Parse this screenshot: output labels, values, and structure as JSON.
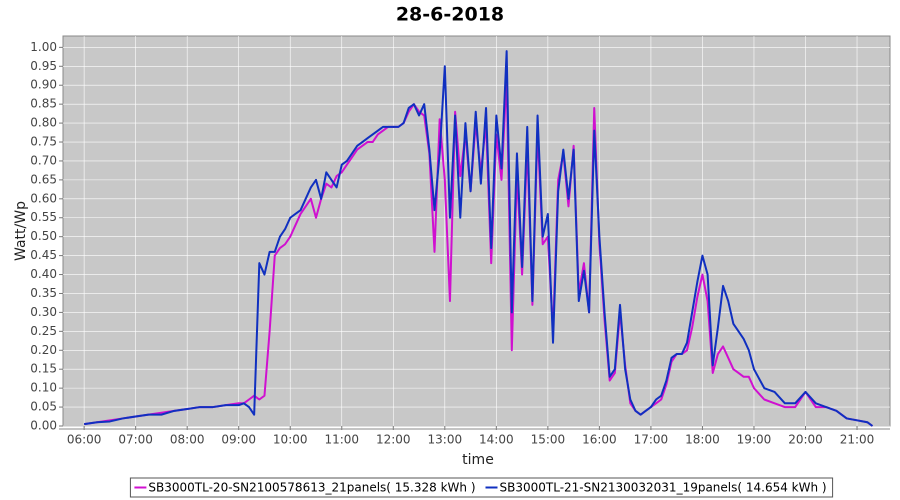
{
  "chart_data": {
    "type": "line",
    "title": "28-6-2018",
    "x_label": "time",
    "y_label": "Watt/Wp",
    "xlim": [
      5.59,
      21.64
    ],
    "ylim": [
      0,
      1.03
    ],
    "grid": true,
    "legend": "bottom",
    "xticks": [
      {
        "value": 6,
        "label": "06:00"
      },
      {
        "value": 7,
        "label": "07:00"
      },
      {
        "value": 8,
        "label": "08:00"
      },
      {
        "value": 9,
        "label": "09:00"
      },
      {
        "value": 10,
        "label": "10:00"
      },
      {
        "value": 11,
        "label": "11:00"
      },
      {
        "value": 12,
        "label": "12:00"
      },
      {
        "value": 13,
        "label": "13:00"
      },
      {
        "value": 14,
        "label": "14:00"
      },
      {
        "value": 15,
        "label": "15:00"
      },
      {
        "value": 16,
        "label": "16:00"
      },
      {
        "value": 17,
        "label": "17:00"
      },
      {
        "value": 18,
        "label": "18:00"
      },
      {
        "value": 19,
        "label": "19:00"
      },
      {
        "value": 20,
        "label": "20:00"
      },
      {
        "value": 21,
        "label": "21:00"
      }
    ],
    "yticks": [
      {
        "value": 0,
        "label": "0.00"
      },
      {
        "value": 0.05,
        "label": "0.05"
      },
      {
        "value": 0.1,
        "label": "0.10"
      },
      {
        "value": 0.15,
        "label": "0.15"
      },
      {
        "value": 0.2,
        "label": "0.20"
      },
      {
        "value": 0.25,
        "label": "0.25"
      },
      {
        "value": 0.3,
        "label": "0.30"
      },
      {
        "value": 0.35,
        "label": "0.35"
      },
      {
        "value": 0.4,
        "label": "0.40"
      },
      {
        "value": 0.45,
        "label": "0.45"
      },
      {
        "value": 0.5,
        "label": "0.50"
      },
      {
        "value": 0.55,
        "label": "0.55"
      },
      {
        "value": 0.6,
        "label": "0.60"
      },
      {
        "value": 0.65,
        "label": "0.65"
      },
      {
        "value": 0.7,
        "label": "0.70"
      },
      {
        "value": 0.75,
        "label": "0.75"
      },
      {
        "value": 0.8,
        "label": "0.80"
      },
      {
        "value": 0.85,
        "label": "0.85"
      },
      {
        "value": 0.9,
        "label": "0.90"
      },
      {
        "value": 0.95,
        "label": "0.95"
      },
      {
        "value": 1,
        "label": "1.00"
      }
    ],
    "x": [
      6,
      6.25,
      6.5,
      6.75,
      7,
      7.25,
      7.5,
      7.75,
      8,
      8.25,
      8.5,
      8.75,
      9,
      9.1,
      9.2,
      9.3,
      9.4,
      9.5,
      9.6,
      9.7,
      9.8,
      9.9,
      10.0,
      10.1,
      10.2,
      10.3,
      10.4,
      10.5,
      10.6,
      10.7,
      10.8,
      10.9,
      11.0,
      11.1,
      11.2,
      11.3,
      11.4,
      11.5,
      11.6,
      11.7,
      11.8,
      11.9,
      12.0,
      12.1,
      12.2,
      12.3,
      12.4,
      12.5,
      12.6,
      12.7,
      12.8,
      12.9,
      13.0,
      13.1,
      13.2,
      13.3,
      13.4,
      13.5,
      13.6,
      13.7,
      13.8,
      13.9,
      14.0,
      14.1,
      14.2,
      14.3,
      14.4,
      14.5,
      14.6,
      14.7,
      14.8,
      14.9,
      15.0,
      15.1,
      15.2,
      15.3,
      15.4,
      15.5,
      15.6,
      15.7,
      15.8,
      15.9,
      16.0,
      16.1,
      16.2,
      16.3,
      16.4,
      16.5,
      16.6,
      16.7,
      16.8,
      16.9,
      17.0,
      17.1,
      17.2,
      17.3,
      17.4,
      17.5,
      17.6,
      17.7,
      17.8,
      17.9,
      18.0,
      18.1,
      18.2,
      18.3,
      18.4,
      18.5,
      18.6,
      18.7,
      18.8,
      18.9,
      19.0,
      19.2,
      19.4,
      19.6,
      19.8,
      20.0,
      20.2,
      20.4,
      20.6,
      20.8,
      21.0,
      21.2,
      21.3
    ],
    "series": [
      {
        "name": "SB3000TL-20-SN2100578613_21panels( 15.328 kWh )",
        "color": "#d010d0",
        "values": [
          0.005,
          0.01,
          0.015,
          0.02,
          0.025,
          0.03,
          0.035,
          0.04,
          0.045,
          0.05,
          0.05,
          0.055,
          0.06,
          0.06,
          0.07,
          0.08,
          0.07,
          0.08,
          0.25,
          0.45,
          0.47,
          0.48,
          0.5,
          0.53,
          0.56,
          0.58,
          0.6,
          0.55,
          0.6,
          0.64,
          0.63,
          0.66,
          0.67,
          0.69,
          0.71,
          0.73,
          0.74,
          0.75,
          0.75,
          0.77,
          0.78,
          0.79,
          0.79,
          0.79,
          0.8,
          0.83,
          0.85,
          0.83,
          0.82,
          0.72,
          0.46,
          0.81,
          0.65,
          0.33,
          0.83,
          0.66,
          0.77,
          0.62,
          0.8,
          0.67,
          0.8,
          0.43,
          0.77,
          0.65,
          0.92,
          0.2,
          0.67,
          0.4,
          0.74,
          0.32,
          0.78,
          0.48,
          0.5,
          0.25,
          0.65,
          0.72,
          0.58,
          0.74,
          0.35,
          0.43,
          0.3,
          0.84,
          0.48,
          0.28,
          0.12,
          0.14,
          0.3,
          0.16,
          0.06,
          0.04,
          0.03,
          0.04,
          0.05,
          0.06,
          0.07,
          0.11,
          0.17,
          0.19,
          0.19,
          0.2,
          0.26,
          0.34,
          0.4,
          0.33,
          0.14,
          0.19,
          0.21,
          0.18,
          0.15,
          0.14,
          0.13,
          0.13,
          0.1,
          0.07,
          0.06,
          0.05,
          0.05,
          0.09,
          0.05,
          0.05,
          0.04,
          0.02,
          0.015,
          0.01,
          0.0
        ]
      },
      {
        "name": "SB3000TL-21-SN2130032031_19panels( 14.654 kWh )",
        "color": "#1030c0",
        "values": [
          0.005,
          0.01,
          0.012,
          0.02,
          0.025,
          0.03,
          0.03,
          0.04,
          0.045,
          0.05,
          0.05,
          0.055,
          0.055,
          0.06,
          0.05,
          0.03,
          0.43,
          0.4,
          0.46,
          0.46,
          0.5,
          0.52,
          0.55,
          0.56,
          0.57,
          0.6,
          0.63,
          0.65,
          0.6,
          0.67,
          0.65,
          0.63,
          0.69,
          0.7,
          0.72,
          0.74,
          0.75,
          0.76,
          0.77,
          0.78,
          0.79,
          0.79,
          0.79,
          0.79,
          0.8,
          0.84,
          0.85,
          0.82,
          0.85,
          0.73,
          0.57,
          0.72,
          0.95,
          0.55,
          0.82,
          0.55,
          0.8,
          0.62,
          0.83,
          0.64,
          0.84,
          0.47,
          0.82,
          0.68,
          0.99,
          0.3,
          0.72,
          0.42,
          0.79,
          0.33,
          0.82,
          0.5,
          0.56,
          0.22,
          0.62,
          0.73,
          0.6,
          0.73,
          0.33,
          0.41,
          0.3,
          0.78,
          0.5,
          0.3,
          0.13,
          0.15,
          0.32,
          0.15,
          0.07,
          0.04,
          0.03,
          0.04,
          0.05,
          0.07,
          0.08,
          0.12,
          0.18,
          0.19,
          0.19,
          0.22,
          0.3,
          0.38,
          0.45,
          0.4,
          0.16,
          0.26,
          0.37,
          0.33,
          0.27,
          0.25,
          0.23,
          0.2,
          0.15,
          0.1,
          0.09,
          0.06,
          0.06,
          0.09,
          0.06,
          0.05,
          0.04,
          0.02,
          0.015,
          0.01,
          0.0
        ]
      }
    ]
  }
}
